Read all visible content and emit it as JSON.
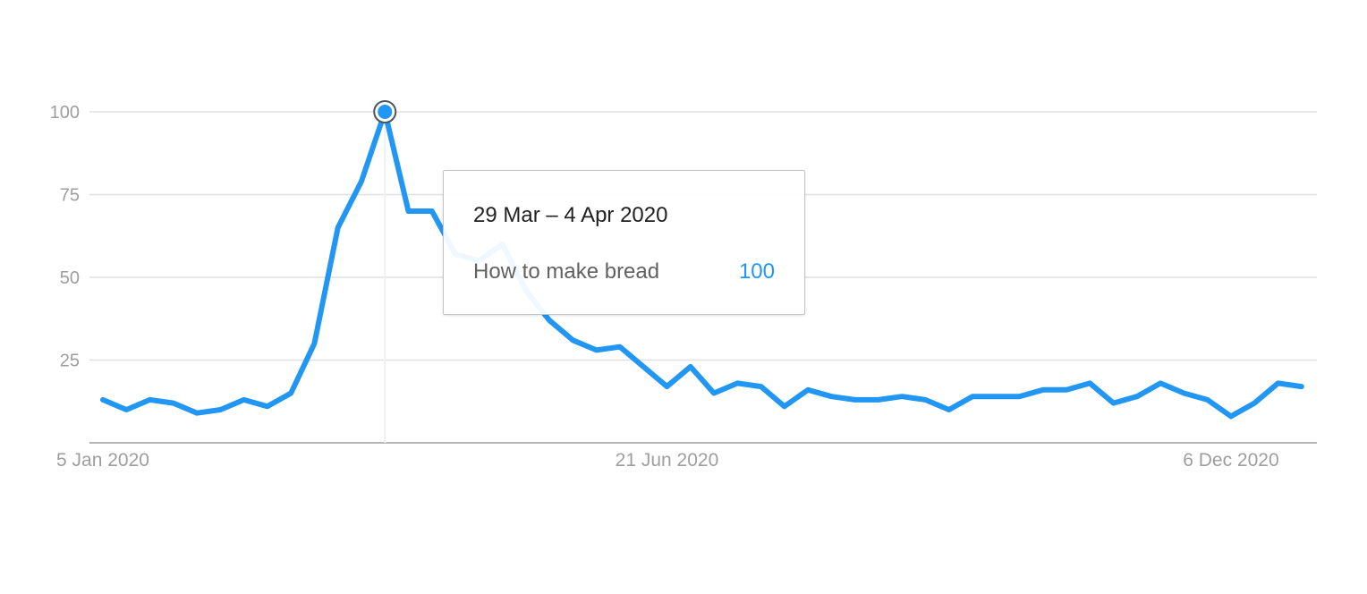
{
  "chart_data": {
    "type": "line",
    "title": "",
    "xlabel": "",
    "ylabel": "",
    "ylim": [
      0,
      100
    ],
    "yticks": [
      25,
      50,
      75,
      100
    ],
    "grid": true,
    "x_start": "2020-01-05",
    "x_step_days": 7,
    "x_tick_labels": [
      {
        "date": "2020-01-05",
        "label": "5 Jan 2020"
      },
      {
        "date": "2020-06-21",
        "label": "21 Jun 2020"
      },
      {
        "date": "2020-12-06",
        "label": "6 Dec 2020"
      }
    ],
    "series": [
      {
        "name": "How to make bread",
        "color": "#2196f3",
        "values": [
          13,
          10,
          13,
          12,
          9,
          10,
          13,
          11,
          15,
          30,
          65,
          79,
          100,
          70,
          70,
          57,
          55,
          60,
          46,
          37,
          31,
          28,
          29,
          23,
          17,
          23,
          15,
          18,
          17,
          11,
          16,
          14,
          13,
          13,
          14,
          13,
          10,
          14,
          14,
          14,
          16,
          16,
          18,
          12,
          14,
          18,
          15,
          13,
          8,
          12,
          18,
          17
        ]
      }
    ],
    "highlight": {
      "index": 12,
      "date_label": "29 Mar – 4 Apr 2020",
      "series_name": "How to make bread",
      "value": "100"
    }
  }
}
